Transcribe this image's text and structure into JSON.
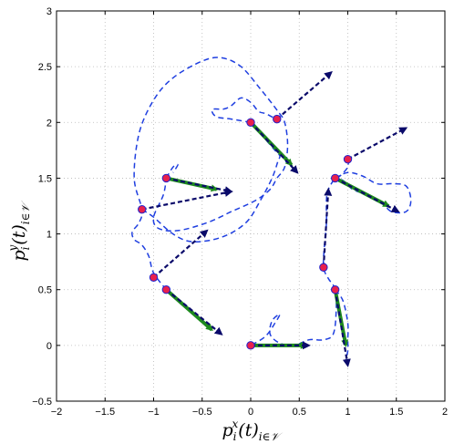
{
  "chart_data": {
    "type": "scatter",
    "title": "",
    "xlabel_base": "p",
    "xlabel_sub": "i",
    "xlabel_sup": "x",
    "xlabel_tail": "(t)",
    "xlabel_tail_sub": "i∈𝒱",
    "ylabel_base": "p",
    "ylabel_sub": "i",
    "ylabel_sup": "y",
    "ylabel_tail": "(t)",
    "ylabel_tail_sub": "i∈𝒱",
    "xlim": [
      -2,
      2
    ],
    "ylim": [
      -0.5,
      3
    ],
    "grid": true,
    "xticks": [
      "−2",
      "−1.5",
      "−1",
      "−0.5",
      "0",
      "0.5",
      "1",
      "1.5",
      "2"
    ],
    "yticks": [
      "−0.5",
      "0",
      "0.5",
      "1",
      "1.5",
      "2",
      "2.5",
      "3"
    ],
    "colors": {
      "marker_fill": "#e8204c",
      "marker_edge": "#2222cc",
      "trajectory": "#1f3fe0",
      "green_arrow": "#1e8a1e",
      "dark_arrow": "#0a0a6a"
    },
    "points": [
      {
        "x": -0.87,
        "y": 0.5
      },
      {
        "x": -1.0,
        "y": 0.61
      },
      {
        "x": -1.12,
        "y": 1.22
      },
      {
        "x": -0.87,
        "y": 1.5
      },
      {
        "x": 0.0,
        "y": 2.0
      },
      {
        "x": 0.27,
        "y": 2.03
      },
      {
        "x": 1.0,
        "y": 1.67
      },
      {
        "x": 0.87,
        "y": 1.5
      },
      {
        "x": 0.75,
        "y": 0.7
      },
      {
        "x": 0.87,
        "y": 0.5
      },
      {
        "x": 0.0,
        "y": 0.0
      }
    ],
    "green_arrows": [
      {
        "x0": -0.87,
        "y0": 0.5,
        "x1": -0.4,
        "y1": 0.14
      },
      {
        "x0": -0.87,
        "y0": 1.5,
        "x1": -0.35,
        "y1": 1.4
      },
      {
        "x0": 0.0,
        "y0": 2.0,
        "x1": 0.42,
        "y1": 1.62
      },
      {
        "x0": 0.87,
        "y0": 1.5,
        "x1": 1.42,
        "y1": 1.25
      },
      {
        "x0": 0.87,
        "y0": 0.5,
        "x1": 0.98,
        "y1": 0.0
      },
      {
        "x0": 0.0,
        "y0": 0.0,
        "x1": 0.57,
        "y1": 0.0
      }
    ],
    "dark_arrows": [
      {
        "x0": -0.87,
        "y0": 0.5,
        "x1": -0.3,
        "y1": 0.1
      },
      {
        "x0": -1.0,
        "y0": 0.61,
        "x1": -0.45,
        "y1": 1.03
      },
      {
        "x0": -1.12,
        "y0": 1.22,
        "x1": -0.2,
        "y1": 1.38
      },
      {
        "x0": -0.87,
        "y0": 1.5,
        "x1": -0.2,
        "y1": 1.38
      },
      {
        "x0": 0.0,
        "y0": 2.0,
        "x1": 0.48,
        "y1": 1.55
      },
      {
        "x0": 0.27,
        "y0": 2.03,
        "x1": 0.83,
        "y1": 2.45
      },
      {
        "x0": 1.0,
        "y0": 1.67,
        "x1": 1.6,
        "y1": 1.95
      },
      {
        "x0": 0.87,
        "y0": 1.5,
        "x1": 1.52,
        "y1": 1.2
      },
      {
        "x0": 0.75,
        "y0": 0.7,
        "x1": 0.8,
        "y1": 1.4
      },
      {
        "x0": 0.87,
        "y0": 0.5,
        "x1": 1.0,
        "y1": -0.18
      },
      {
        "x0": 0.0,
        "y0": 0.0,
        "x1": 0.6,
        "y1": 0.0
      }
    ],
    "trajectories": [
      [
        [
          -0.87,
          0.5
        ],
        [
          -1.0,
          0.65
        ],
        [
          -1.05,
          0.8
        ],
        [
          -1.12,
          0.9
        ],
        [
          -1.2,
          0.95
        ],
        [
          -1.22,
          1.02
        ],
        [
          -1.15,
          1.1
        ],
        [
          -1.12,
          1.22
        ],
        [
          -1.2,
          1.5
        ],
        [
          -1.15,
          1.9
        ],
        [
          -1.0,
          2.2
        ],
        [
          -0.8,
          2.4
        ],
        [
          -0.5,
          2.55
        ],
        [
          -0.3,
          2.58
        ],
        [
          -0.1,
          2.5
        ],
        [
          0.1,
          2.3
        ],
        [
          0.28,
          2.1
        ],
        [
          0.35,
          2.0
        ],
        [
          0.38,
          1.8
        ],
        [
          0.35,
          1.6
        ],
        [
          0.27,
          1.5
        ],
        [
          0.2,
          1.4
        ],
        [
          0.05,
          1.3
        ],
        [
          -0.2,
          1.2
        ],
        [
          -0.45,
          1.1
        ],
        [
          -0.75,
          1.03
        ],
        [
          -0.95,
          1.05
        ],
        [
          -1.0,
          1.15
        ],
        [
          -0.9,
          1.35
        ],
        [
          -0.87,
          1.5
        ]
      ],
      [
        [
          -1.12,
          1.22
        ],
        [
          -1.0,
          1.15
        ],
        [
          -0.8,
          1.0
        ],
        [
          -0.6,
          0.93
        ],
        [
          -0.3,
          0.97
        ],
        [
          -0.05,
          1.1
        ],
        [
          0.1,
          1.3
        ],
        [
          0.22,
          1.5
        ],
        [
          0.28,
          1.65
        ],
        [
          0.3,
          1.7
        ],
        [
          0.25,
          1.75
        ],
        [
          0.15,
          1.85
        ],
        [
          0.05,
          1.95
        ],
        [
          0.0,
          2.0
        ]
      ],
      [
        [
          0.0,
          2.0
        ],
        [
          -0.2,
          2.03
        ],
        [
          -0.35,
          2.05
        ],
        [
          -0.4,
          2.1
        ],
        [
          -0.38,
          2.12
        ],
        [
          -0.28,
          2.12
        ],
        [
          -0.2,
          2.15
        ],
        [
          -0.1,
          2.22
        ],
        [
          0.0,
          2.18
        ],
        [
          0.08,
          2.1
        ],
        [
          0.15,
          2.08
        ],
        [
          0.22,
          2.05
        ],
        [
          0.27,
          2.03
        ]
      ],
      [
        [
          -0.87,
          1.5
        ],
        [
          -0.8,
          1.6
        ],
        [
          -0.75,
          1.62
        ],
        [
          -0.8,
          1.55
        ]
      ],
      [
        [
          1.0,
          1.67
        ],
        [
          1.0,
          1.6
        ],
        [
          0.92,
          1.52
        ],
        [
          0.87,
          1.5
        ],
        [
          0.8,
          1.4
        ],
        [
          0.78,
          1.3
        ],
        [
          0.78,
          1.1
        ],
        [
          0.76,
          0.9
        ],
        [
          0.75,
          0.7
        ],
        [
          0.8,
          0.6
        ],
        [
          0.87,
          0.5
        ],
        [
          0.88,
          0.3
        ],
        [
          0.85,
          0.1
        ],
        [
          0.75,
          0.05
        ],
        [
          0.6,
          0.05
        ],
        [
          0.45,
          0.0
        ],
        [
          0.3,
          0.02
        ],
        [
          0.2,
          0.1
        ],
        [
          0.22,
          0.22
        ],
        [
          0.3,
          0.28
        ],
        [
          0.25,
          0.2
        ],
        [
          0.15,
          0.08
        ],
        [
          0.0,
          0.0
        ]
      ],
      [
        [
          0.87,
          1.5
        ],
        [
          1.0,
          1.55
        ],
        [
          1.15,
          1.52
        ],
        [
          1.3,
          1.45
        ],
        [
          1.45,
          1.45
        ],
        [
          1.6,
          1.43
        ],
        [
          1.65,
          1.3
        ],
        [
          1.6,
          1.2
        ],
        [
          1.45,
          1.2
        ],
        [
          1.35,
          1.28
        ],
        [
          1.2,
          1.35
        ],
        [
          1.05,
          1.4
        ],
        [
          0.95,
          1.48
        ],
        [
          0.87,
          1.5
        ]
      ],
      [
        [
          0.87,
          0.5
        ],
        [
          0.95,
          0.4
        ],
        [
          1.0,
          0.2
        ],
        [
          1.0,
          0.05
        ],
        [
          1.0,
          -0.05
        ],
        [
          0.97,
          -0.15
        ]
      ]
    ]
  }
}
